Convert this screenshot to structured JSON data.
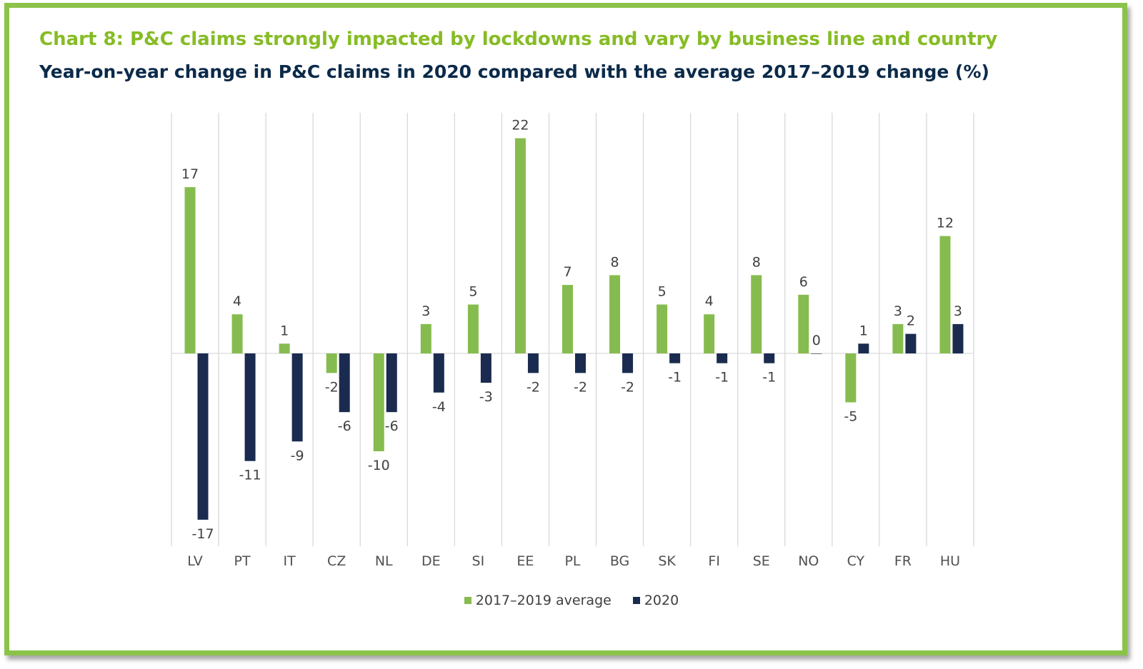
{
  "title": "Chart 8: P&C claims strongly impacted by lockdowns and vary by business line and country",
  "subtitle": "Year-on-year change in P&C claims in 2020 compared with the average 2017–2019 change (%)",
  "chart_data": {
    "type": "bar",
    "title": "Chart 8: P&C claims strongly impacted by lockdowns and vary by business line and country",
    "subtitle": "Year-on-year change in P&C claims in 2020 compared with the average 2017–2019 change (%)",
    "categories": [
      "LV",
      "PT",
      "IT",
      "CZ",
      "NL",
      "DE",
      "SI",
      "EE",
      "PL",
      "BG",
      "SK",
      "FI",
      "SE",
      "NO",
      "CY",
      "FR",
      "HU"
    ],
    "series": [
      {
        "name": "2017–2019 average",
        "color": "#86bc4f",
        "values": [
          17,
          4,
          1,
          -2,
          -10,
          3,
          5,
          22,
          7,
          8,
          5,
          4,
          8,
          6,
          -5,
          3,
          12
        ]
      },
      {
        "name": "2020",
        "color": "#1a2b4f",
        "values": [
          -17,
          -11,
          -9,
          -6,
          -6,
          -4,
          -3,
          -2,
          -2,
          -2,
          -1,
          -1,
          -1,
          0,
          1,
          2,
          3
        ]
      }
    ],
    "xlabel": "",
    "ylabel": "",
    "ylim": [
      -20,
      25
    ],
    "grid": "vertical separators",
    "legend": "bottom-center"
  }
}
